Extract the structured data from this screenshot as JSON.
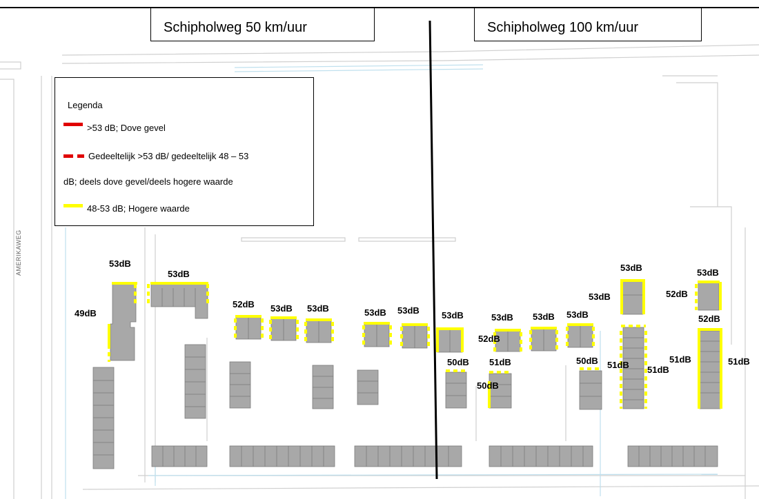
{
  "titles": {
    "left": "Schipholweg 50 km/uur",
    "right": "Schipholweg 100 km/uur"
  },
  "legend": {
    "title": "Legenda",
    "items": [
      {
        "color": "#e00000",
        "style": "solid",
        "label": ">53 dB; Dove gevel"
      },
      {
        "color": "#e00000",
        "style": "dashed",
        "label": "Gedeeltelijk >53 dB/ gedeeltelijk 48 – 53",
        "label2": "dB; deels dove gevel/deels hogere waarde"
      },
      {
        "color": "#ffff00",
        "style": "solid",
        "label": "48-53 dB; Hogere waarde"
      }
    ]
  },
  "street_name": "AMERIKAWEG",
  "labels": [
    "53dB",
    "53dB",
    "49dB",
    "52dB",
    "53dB",
    "53dB",
    "53dB",
    "53dB",
    "53dB",
    "53dB",
    "53dB",
    "53dB",
    "52dB",
    "50dB",
    "51dB",
    "50dB",
    "50dB",
    "51dB",
    "51dB",
    "53dB",
    "53dB",
    "53dB",
    "52dB",
    "52dB",
    "51dB",
    "51dB"
  ],
  "colors": {
    "building": "#a8a8a8",
    "road_line": "#c8c8c8",
    "water": "#a9d4e8",
    "high": "#ffff00",
    "deaf": "#e00000"
  }
}
